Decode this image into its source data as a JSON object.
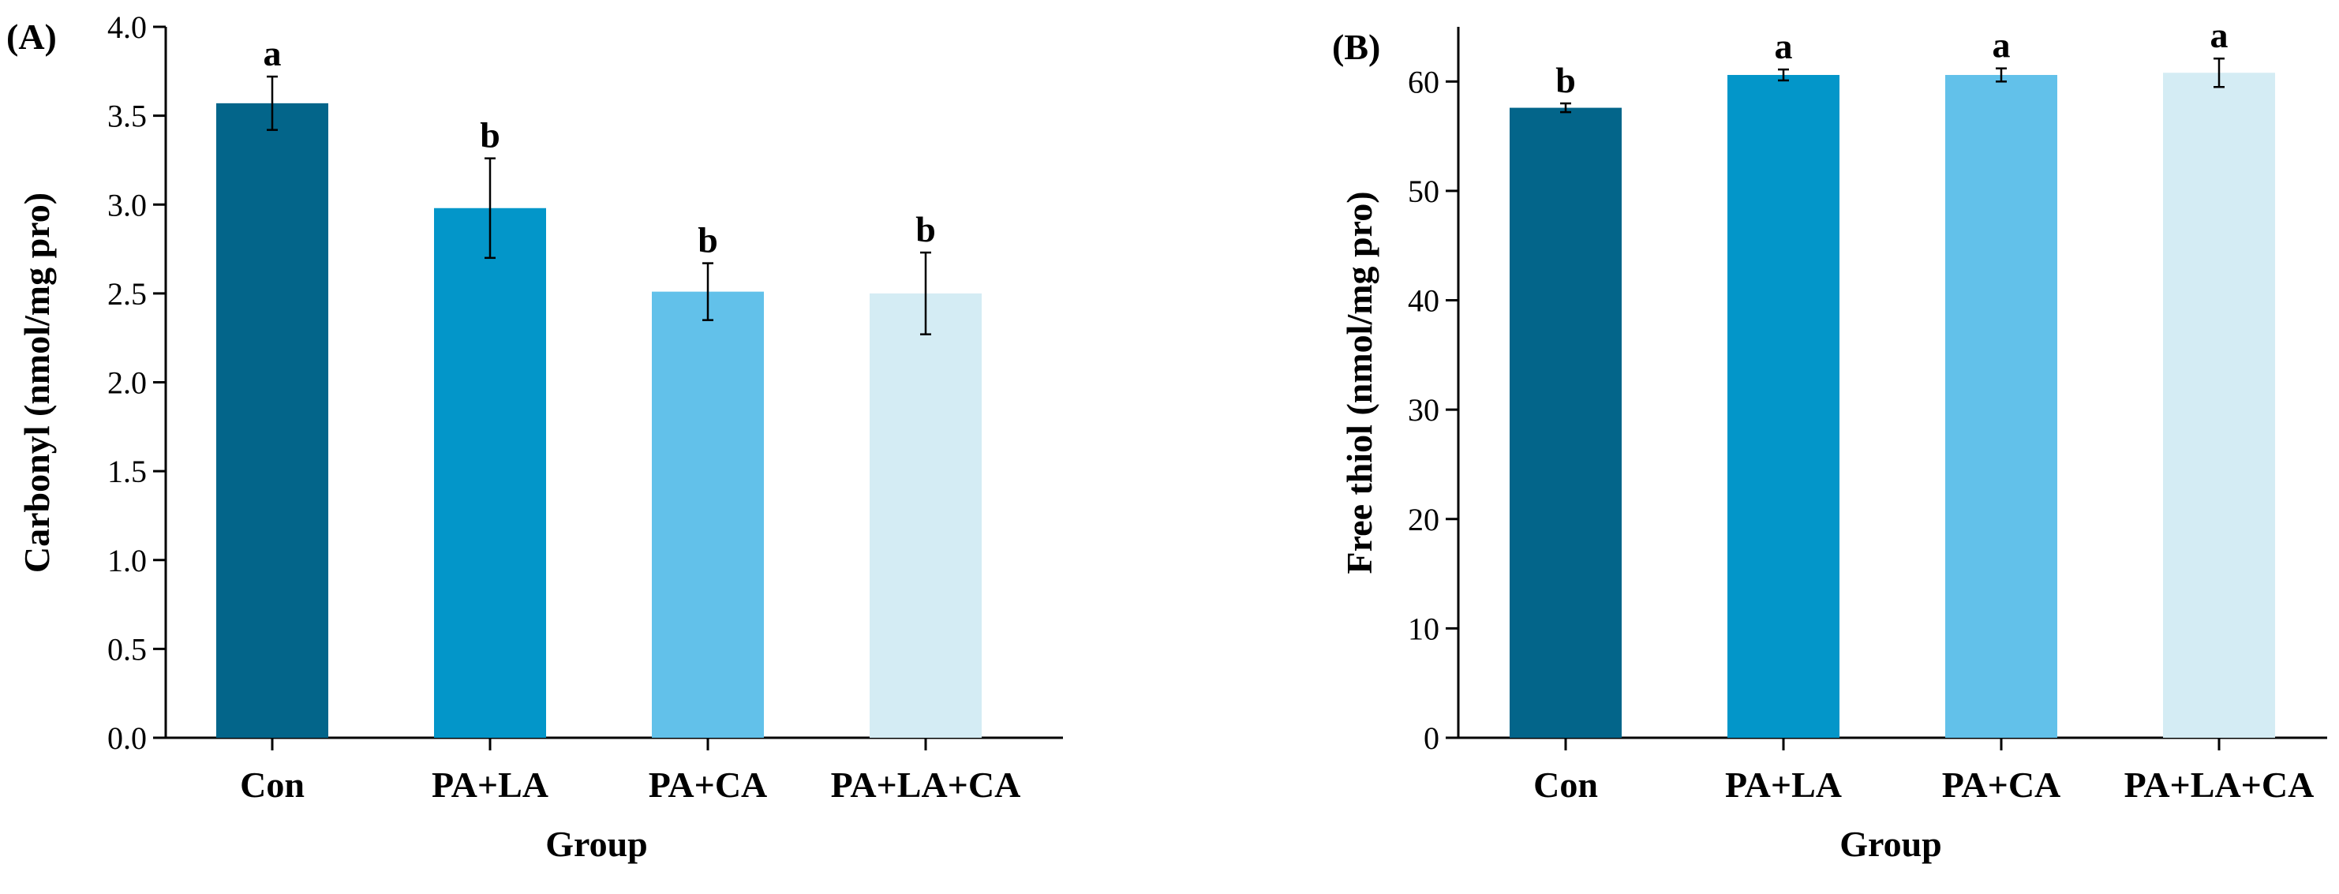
{
  "chart_data": [
    {
      "type": "bar",
      "panel_label": "(A)",
      "categories": [
        "Con",
        "PA+LA",
        "PA+CA",
        "PA+LA+CA"
      ],
      "values": [
        3.57,
        2.98,
        2.51,
        2.5
      ],
      "errors": [
        0.15,
        0.28,
        0.16,
        0.23
      ],
      "significance": [
        "a",
        "b",
        "b",
        "b"
      ],
      "colors": [
        "#03658a",
        "#0396c9",
        "#62c1ea",
        "#d4ecf4"
      ],
      "xlabel": "Group",
      "ylabel": "Carbonyl (nmol/mg pro)",
      "ylim": [
        0,
        4.0
      ],
      "yticks": [
        "0.0",
        "0.5",
        "1.0",
        "1.5",
        "2.0",
        "2.5",
        "3.0",
        "3.5",
        "4.0"
      ],
      "grid": false
    },
    {
      "type": "bar",
      "panel_label": "(B)",
      "categories": [
        "Con",
        "PA+LA",
        "PA+CA",
        "PA+LA+CA"
      ],
      "values": [
        57.6,
        60.6,
        60.6,
        60.8
      ],
      "errors": [
        0.4,
        0.5,
        0.6,
        1.3
      ],
      "significance": [
        "b",
        "a",
        "a",
        "a"
      ],
      "colors": [
        "#03658a",
        "#0396c9",
        "#62c1ea",
        "#d4ecf4"
      ],
      "xlabel": "Group",
      "ylabel": "Free thiol (nmol/mg pro)",
      "ylim": [
        0,
        65
      ],
      "yticks": [
        "0",
        "10",
        "20",
        "30",
        "40",
        "50",
        "60"
      ],
      "grid": false
    }
  ]
}
